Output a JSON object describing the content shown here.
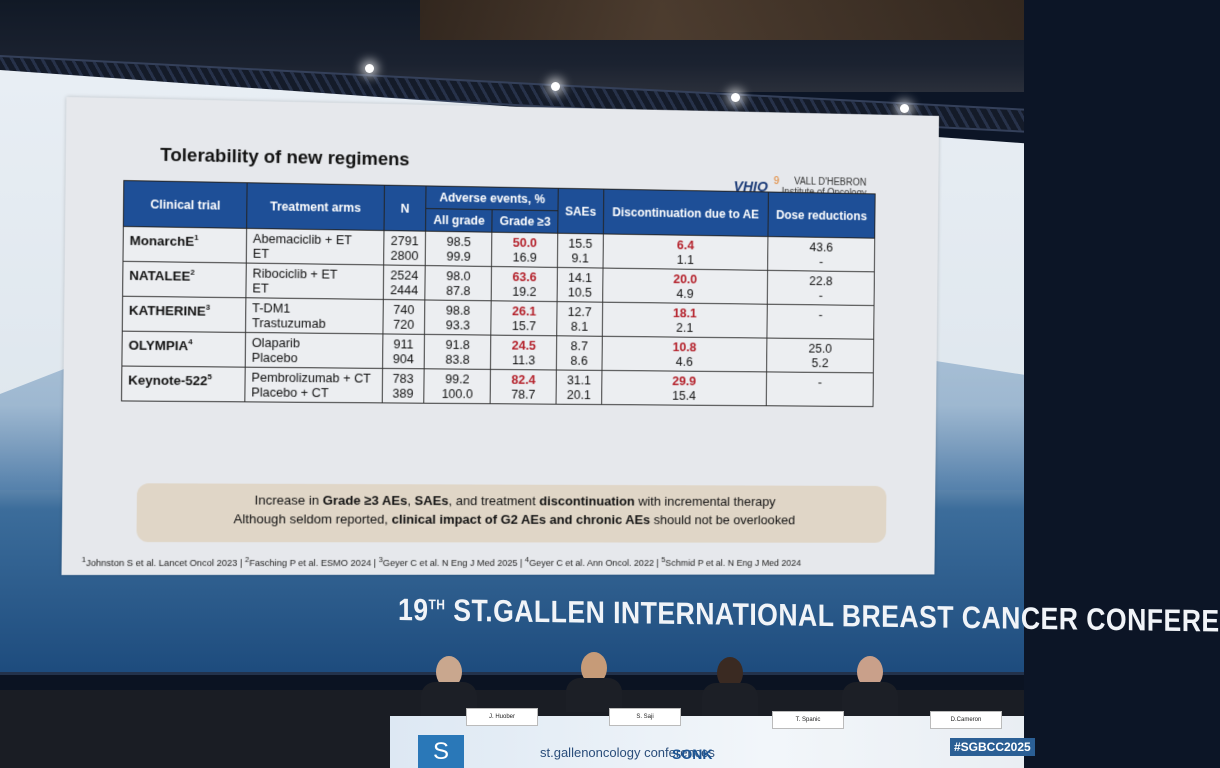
{
  "slide": {
    "title": "Tolerability of new regimens",
    "logo": {
      "mark": "VHIO",
      "accent": "9",
      "line1": "VALL D'HEBRON",
      "line2": "Institute of Oncology"
    },
    "headers": {
      "trial": "Clinical trial",
      "arms": "Treatment arms",
      "n": "N",
      "ae": "Adverse events, %",
      "all_grade": "All grade",
      "grade3": "Grade ≥3",
      "saes": "SAEs",
      "discontinuation": "Discontinuation due to AE",
      "dose": "Dose reductions"
    },
    "rows": [
      {
        "trial": "MonarchE",
        "ref": "1",
        "arms": [
          "Abemaciclib + ET",
          "ET"
        ],
        "n": [
          "2791",
          "2800"
        ],
        "all": [
          "98.5",
          "99.9"
        ],
        "g3": [
          "50.0",
          "16.9"
        ],
        "sae": [
          "15.5",
          "9.1"
        ],
        "disc": [
          "6.4",
          "1.1"
        ],
        "dose": [
          "43.6",
          "-"
        ]
      },
      {
        "trial": "NATALEE",
        "ref": "2",
        "arms": [
          "Ribociclib + ET",
          "ET"
        ],
        "n": [
          "2524",
          "2444"
        ],
        "all": [
          "98.0",
          "87.8"
        ],
        "g3": [
          "63.6",
          "19.2"
        ],
        "sae": [
          "14.1",
          "10.5"
        ],
        "disc": [
          "20.0",
          "4.9"
        ],
        "dose": [
          "22.8",
          "-"
        ]
      },
      {
        "trial": "KATHERINE",
        "ref": "3",
        "arms": [
          "T-DM1",
          "Trastuzumab"
        ],
        "n": [
          "740",
          "720"
        ],
        "all": [
          "98.8",
          "93.3"
        ],
        "g3": [
          "26.1",
          "15.7"
        ],
        "sae": [
          "12.7",
          "8.1"
        ],
        "disc": [
          "18.1",
          "2.1"
        ],
        "dose": [
          "",
          "-"
        ]
      },
      {
        "trial": "OLYMPIA",
        "ref": "4",
        "arms": [
          "Olaparib",
          "Placebo"
        ],
        "n": [
          "911",
          "904"
        ],
        "all": [
          "91.8",
          "83.8"
        ],
        "g3": [
          "24.5",
          "11.3"
        ],
        "sae": [
          "8.7",
          "8.6"
        ],
        "disc": [
          "10.8",
          "4.6"
        ],
        "dose": [
          "25.0",
          "5.2"
        ]
      },
      {
        "trial": "Keynote-522",
        "ref": "5",
        "arms": [
          "Pembrolizumab + CT",
          "Placebo + CT"
        ],
        "n": [
          "783",
          "389"
        ],
        "all": [
          "99.2",
          "100.0"
        ],
        "g3": [
          "82.4",
          "78.7"
        ],
        "sae": [
          "31.1",
          "20.1"
        ],
        "disc": [
          "29.9",
          "15.4"
        ],
        "dose": [
          "",
          "-"
        ]
      }
    ],
    "callout": {
      "l1a": "Increase in ",
      "l1b": "Grade ≥3 AEs",
      "l1c": ", ",
      "l1d": "SAEs",
      "l1e": ", and treatment ",
      "l1f": "discontinuation",
      "l1g": " with incremental therapy",
      "l2a": "Although seldom reported, ",
      "l2b": "clinical impact of G2 AEs and chronic AEs",
      "l2c": " should not be overlooked"
    },
    "references": {
      "r1n": "1",
      "r1": "Johnston S et al. Lancet Oncol 2023 | ",
      "r2n": "2",
      "r2": "Fasching P et al. ESMO 2024 | ",
      "r3n": "3",
      "r3": "Geyer C et al. N Eng J Med 2025 | ",
      "r4n": "4",
      "r4": "Geyer C et al. Ann Oncol. 2022 | ",
      "r5n": "5",
      "r5": "Schmid P et al. N Eng J Med 2024"
    }
  },
  "conference": {
    "num": "19",
    "suffix": "TH",
    "title": " ST.GALLEN INTERNATIONAL BREAST CANCER CONFERE"
  },
  "panel": {
    "nameplates": [
      "J. Huober",
      "S. Saji",
      "T. Spanic",
      "D.Cameron"
    ],
    "sponsor1": "st.gallenoncology conferences",
    "sponsor2": "SONK",
    "hashtag": "#SGBCC2025"
  }
}
